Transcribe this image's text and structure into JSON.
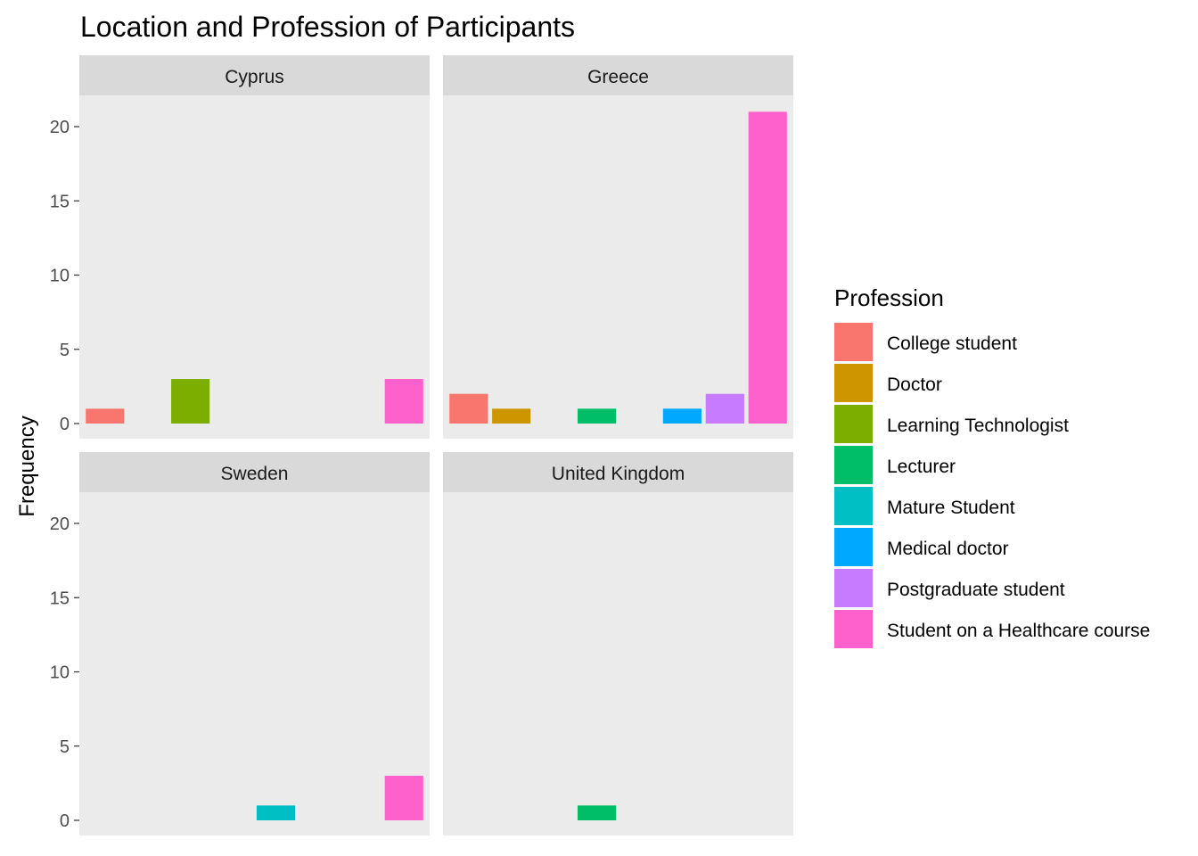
{
  "chart_data": {
    "type": "bar",
    "title": "Location and Profession of Participants",
    "xlabel": "",
    "ylabel": "Frequency",
    "ylim": [
      0,
      22
    ],
    "yticks": [
      0,
      5,
      10,
      15,
      20
    ],
    "grid": false,
    "legend_position": "right",
    "legend_title": "Profession",
    "categories": [
      "College student",
      "Doctor",
      "Learning Technologist",
      "Lecturer",
      "Mature Student",
      "Medical doctor",
      "Postgraduate student",
      "Student on a Healthcare course"
    ],
    "colors": [
      "#F8766D",
      "#CD9600",
      "#7CAE00",
      "#00BE67",
      "#00BFC4",
      "#00A9FF",
      "#C77CFF",
      "#FF61CC"
    ],
    "panels": [
      {
        "label": "Cyprus",
        "values": [
          1,
          0,
          3,
          0,
          0,
          0,
          0,
          3
        ]
      },
      {
        "label": "Greece",
        "values": [
          2,
          1,
          0,
          1,
          0,
          1,
          2,
          21
        ]
      },
      {
        "label": "Sweden",
        "values": [
          0,
          0,
          0,
          0,
          1,
          0,
          0,
          3
        ]
      },
      {
        "label": "United Kingdom",
        "values": [
          0,
          0,
          0,
          1,
          0,
          0,
          0,
          0
        ]
      }
    ]
  }
}
